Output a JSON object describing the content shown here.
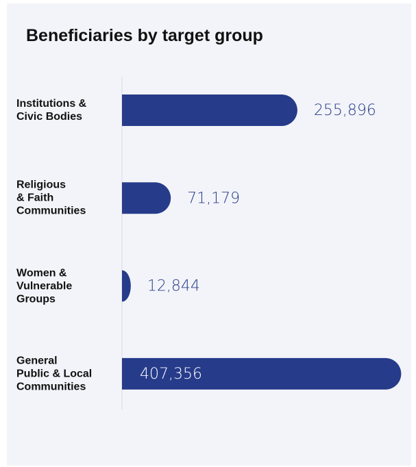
{
  "chart_data": {
    "type": "barh",
    "title": "Beneficiaries by target group",
    "categories": [
      "Institutions &\nCivic Bodies",
      "Religious\n& Faith\nCommunities",
      "Women &\nVulnerable\nGroups",
      "General\nPublic & Local\nCommunities"
    ],
    "values": [
      255896,
      71179,
      12844,
      407356
    ],
    "value_labels": [
      "255,896",
      "71,179",
      "12,844",
      "407,356"
    ],
    "color": "#263b8a",
    "xlim": [
      0,
      408000
    ]
  }
}
